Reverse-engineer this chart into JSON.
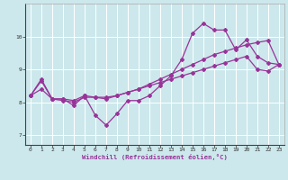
{
  "xlabel": "Windchill (Refroidissement éolien,°C)",
  "x": [
    0,
    1,
    2,
    3,
    4,
    5,
    6,
    7,
    8,
    9,
    10,
    11,
    12,
    13,
    14,
    15,
    16,
    17,
    18,
    19,
    20,
    21,
    22,
    23
  ],
  "line1": [
    8.2,
    8.7,
    8.1,
    8.1,
    7.9,
    8.2,
    7.6,
    7.3,
    7.65,
    8.05,
    8.05,
    8.2,
    8.5,
    8.8,
    9.3,
    10.1,
    10.4,
    10.2,
    10.2,
    9.6,
    9.9,
    9.4,
    9.2,
    9.15
  ],
  "line2": [
    8.2,
    8.65,
    8.1,
    8.05,
    8.0,
    8.15,
    8.15,
    8.15,
    8.2,
    8.3,
    8.4,
    8.55,
    8.7,
    8.85,
    9.0,
    9.15,
    9.3,
    9.45,
    9.55,
    9.65,
    9.75,
    9.82,
    9.88,
    9.15
  ],
  "line3": [
    8.2,
    8.4,
    8.1,
    8.1,
    8.05,
    8.2,
    8.15,
    8.1,
    8.2,
    8.3,
    8.4,
    8.5,
    8.6,
    8.7,
    8.8,
    8.9,
    9.0,
    9.1,
    9.2,
    9.3,
    9.4,
    9.0,
    8.95,
    9.15
  ],
  "line_color": "#993399",
  "bg_color": "#cce8ec",
  "grid_color": "#ffffff",
  "ylim": [
    6.7,
    11.0
  ],
  "yticks": [
    7,
    8,
    9,
    10
  ],
  "xlim": [
    -0.5,
    23.5
  ]
}
